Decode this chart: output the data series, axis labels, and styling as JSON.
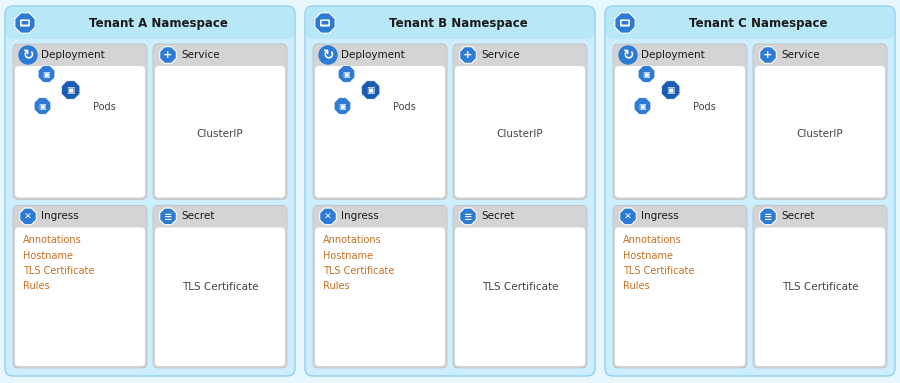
{
  "background": "#e8f6fd",
  "panel_bg": "#cceeff",
  "panel_border": "#90d0f0",
  "title_bar_bg": "#b8e8f8",
  "card_header_bg": "#d4d4d4",
  "card_body_bg": "#ffffff",
  "tenants": [
    "Tenant A Namespace",
    "Tenant B Namespace",
    "Tenant C Namespace"
  ],
  "icon_blue": "#2e7bd6",
  "icon_blue2": "#1a5db5",
  "text_black": "#1a1a1a",
  "text_orange": "#c87020",
  "text_gray": "#444444",
  "card_body_bottom_left": "Annotations\nHostname\nTLS Certificate\nRules",
  "card_body_bottom_right": "TLS Certificate",
  "clusterip": "ClusterIP",
  "pods_label": "Pods"
}
